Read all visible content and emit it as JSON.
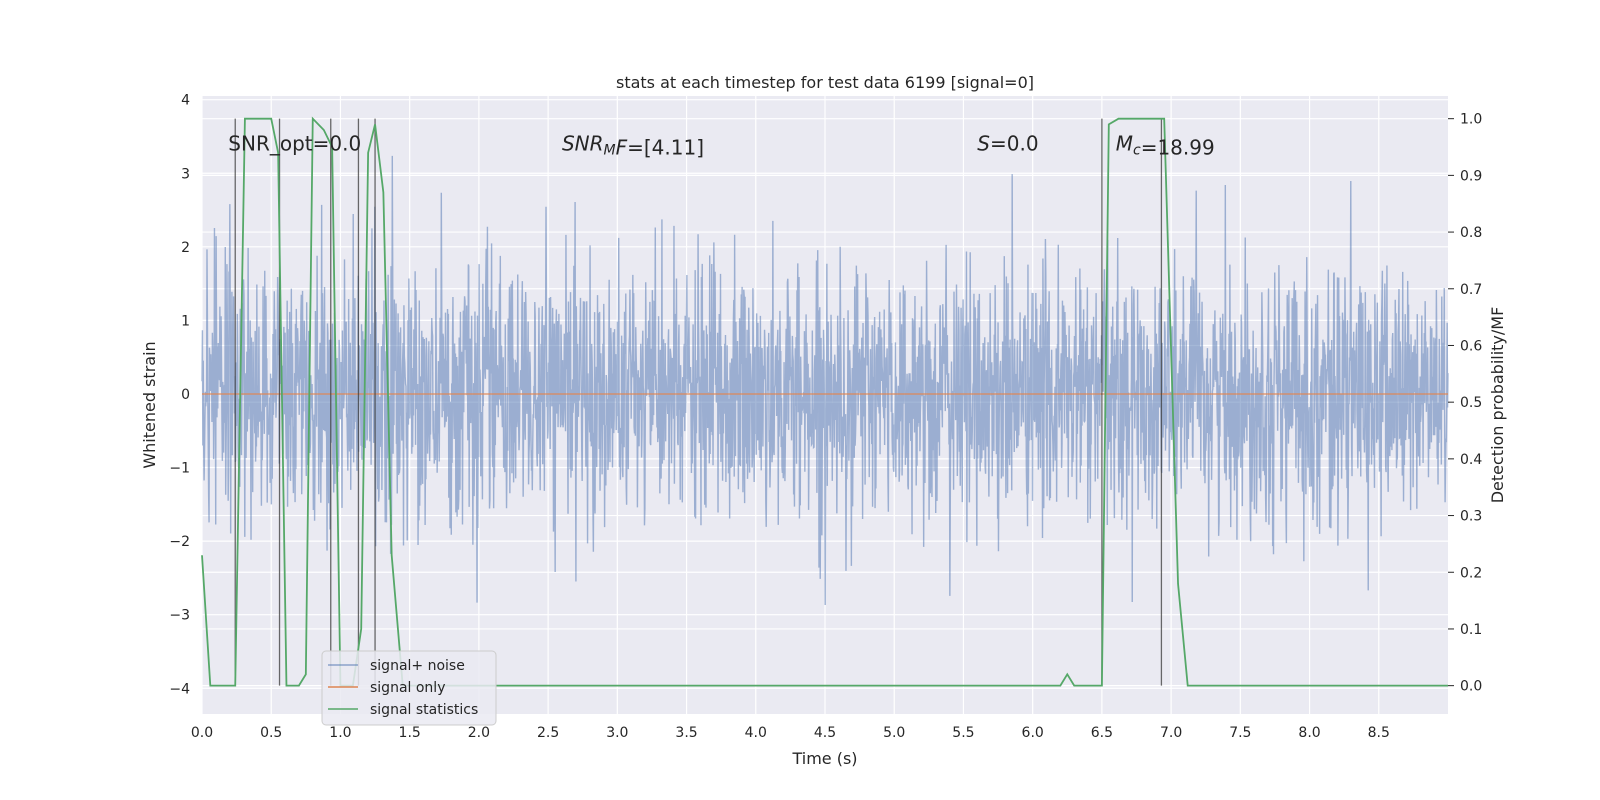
{
  "chart_data": {
    "type": "line",
    "title": "stats at each timestep for test data 6199 [signal=0]",
    "xlabel": "Time (s)",
    "ylabel": "Whitened strain",
    "y2label": "Detection probability/MF",
    "xlim": [
      0.0,
      9.0
    ],
    "ylim": [
      -4.35,
      4.05
    ],
    "y2lim": [
      -0.05,
      1.04
    ],
    "xticks": [
      0.0,
      0.5,
      1.0,
      1.5,
      2.0,
      2.5,
      3.0,
      3.5,
      4.0,
      4.5,
      5.0,
      5.5,
      6.0,
      6.5,
      7.0,
      7.5,
      8.0,
      8.5
    ],
    "xtick_labels": [
      "0.0",
      "0.5",
      "1.0",
      "1.5",
      "2.0",
      "2.5",
      "3.0",
      "3.5",
      "4.0",
      "4.5",
      "5.0",
      "5.5",
      "6.0",
      "6.5",
      "7.0",
      "7.5",
      "8.0",
      "8.5"
    ],
    "yticks": [
      -4,
      -3,
      -2,
      -1,
      0,
      1,
      2,
      3,
      4
    ],
    "ytick_labels": [
      "−4",
      "−3",
      "−2",
      "−1",
      "0",
      "1",
      "2",
      "3",
      "4"
    ],
    "y2ticks": [
      0.0,
      0.1,
      0.2,
      0.3,
      0.4,
      0.5,
      0.6,
      0.7,
      0.8,
      0.9,
      1.0
    ],
    "y2tick_labels": [
      "0.0",
      "0.1",
      "0.2",
      "0.3",
      "0.4",
      "0.5",
      "0.6",
      "0.7",
      "0.8",
      "0.9",
      "1.0"
    ],
    "grid": true,
    "legend_position": "lower-left",
    "annotations": [
      {
        "x": 0.19,
        "y_frac": 0.96,
        "text": "SNR_opt=0.0",
        "italic": false
      },
      {
        "x": 2.6,
        "y_frac": 0.96,
        "text_italic": "SNR",
        "text_sub": "M",
        "text_rest_italic": "F",
        "text_tail": "=[4.11]",
        "italic": true
      },
      {
        "x": 5.6,
        "y_frac": 0.96,
        "text_italic": "S",
        "text_tail": "=0.0",
        "italic": true
      },
      {
        "x": 6.6,
        "y_frac": 0.96,
        "text_italic": "M",
        "text_sub": "c",
        "text_tail": "=18.99",
        "italic": true
      }
    ],
    "vertical_lines_x": [
      0.24,
      0.56,
      0.93,
      1.13,
      1.25,
      6.5,
      6.93
    ],
    "series": [
      {
        "name": "signal+ noise",
        "color": "#4c72b0",
        "axis": "left",
        "noise": {
          "t_start": 0.0,
          "t_end": 9.0,
          "samples": 3000,
          "std": 0.85,
          "envelope": 4.0
        }
      },
      {
        "name": "signal only",
        "color": "#dd8452",
        "axis": "left",
        "x": [
          0.0,
          9.0
        ],
        "y": [
          0.0,
          0.0
        ]
      },
      {
        "name": "signal statistics",
        "color": "#55a868",
        "axis": "right",
        "x": [
          0.0,
          0.06,
          0.24,
          0.31,
          0.5,
          0.55,
          0.61,
          0.7,
          0.75,
          0.8,
          0.88,
          0.94,
          1.0,
          1.09,
          1.15,
          1.2,
          1.25,
          1.31,
          1.37,
          1.45,
          1.5,
          6.2,
          6.25,
          6.3,
          6.5,
          6.55,
          6.62,
          6.95,
          7.05,
          7.12,
          7.3,
          9.0
        ],
        "y": [
          0.23,
          0.0,
          0.0,
          1.0,
          1.0,
          0.94,
          0.0,
          0.0,
          0.02,
          1.0,
          0.98,
          0.95,
          0.0,
          0.0,
          0.1,
          0.94,
          0.99,
          0.87,
          0.23,
          0.0,
          0.0,
          0.0,
          0.02,
          0.0,
          0.0,
          0.99,
          1.0,
          1.0,
          0.18,
          0.0,
          0.0,
          0.0
        ]
      }
    ]
  }
}
